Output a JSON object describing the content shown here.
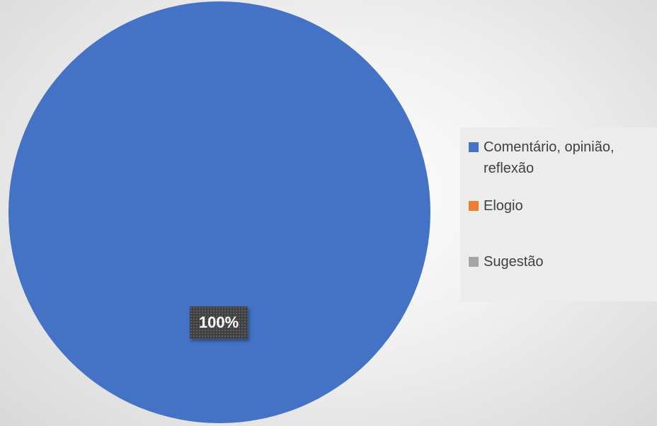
{
  "chart_data": {
    "type": "pie",
    "title": "",
    "categories": [
      "Comentário, opinião, reflexão",
      "Elogio",
      "Sugestão"
    ],
    "values": [
      100,
      0,
      0
    ],
    "data_labels": [
      "100%",
      "",
      ""
    ],
    "colors": [
      "#4472C4",
      "#ED7D31",
      "#A5A5A5"
    ],
    "legend_position": "right"
  },
  "legend": {
    "items": [
      {
        "label_line1": "Comentário, opinião,",
        "label_line2": "reflexão",
        "color": "#4472C4"
      },
      {
        "label_line1": "Elogio",
        "color": "#ED7D31"
      },
      {
        "label_line1": "Sugestão",
        "color": "#A5A5A5"
      }
    ]
  }
}
